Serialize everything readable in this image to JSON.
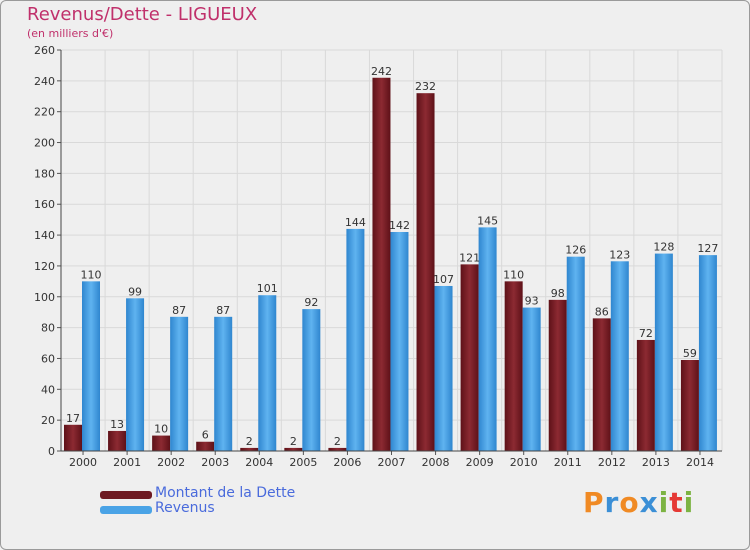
{
  "chart_data": {
    "type": "bar",
    "title": "Revenus/Dette - LIGUEUX",
    "subtitle": "(en milliers d'€)",
    "categories": [
      "2000",
      "2001",
      "2002",
      "2003",
      "2004",
      "2005",
      "2006",
      "2007",
      "2008",
      "2009",
      "2010",
      "2011",
      "2012",
      "2013",
      "2014"
    ],
    "series": [
      {
        "name": "Montant de la Dette",
        "color": "#7a1d24",
        "values": [
          17,
          13,
          10,
          6,
          2,
          2,
          2,
          242,
          232,
          121,
          110,
          98,
          86,
          72,
          59
        ]
      },
      {
        "name": "Revenus",
        "color": "#4aa3e6",
        "values": [
          110,
          99,
          87,
          87,
          101,
          92,
          144,
          142,
          107,
          145,
          93,
          126,
          123,
          128,
          127
        ]
      }
    ],
    "ylim": [
      0,
      260
    ],
    "yticks": [
      0,
      20,
      40,
      60,
      80,
      100,
      120,
      140,
      160,
      180,
      200,
      220,
      240,
      260
    ],
    "grid": true,
    "legend": "bottom-left"
  },
  "logo": {
    "text": "Proxiti",
    "letters": [
      "P",
      "r",
      "o",
      "x",
      "i",
      "t",
      "i"
    ],
    "colors": [
      "#f08a24",
      "#3b8fd6",
      "#f08a24",
      "#3b8fd6",
      "#7cb342",
      "#e53935",
      "#7cb342"
    ]
  }
}
